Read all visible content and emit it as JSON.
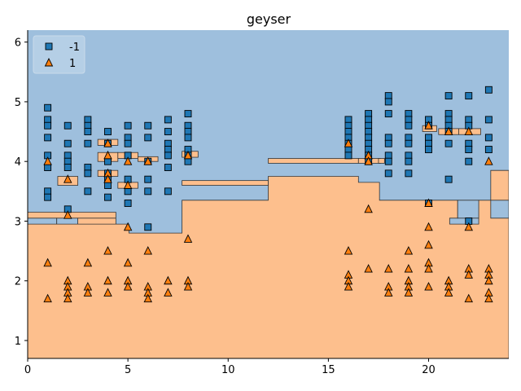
{
  "chart_data": {
    "type": "scatter",
    "title": "geyser",
    "xlabel": "",
    "ylabel": "",
    "xlim": [
      0,
      24
    ],
    "ylim": [
      0.7,
      6.2
    ],
    "xticks": [
      0,
      5,
      10,
      15,
      20
    ],
    "yticks": [
      1,
      2,
      3,
      4,
      5,
      6
    ],
    "grid": false,
    "legend_position": "top-left",
    "background": "decision-regions",
    "region_colors": {
      "-1": "#9ebfdd",
      "1": "#fdbf8d"
    },
    "series": [
      {
        "name": "-1",
        "marker": "square",
        "color": "#1f77b4",
        "points": [
          [
            1,
            4.9
          ],
          [
            1,
            4.7
          ],
          [
            1,
            4.6
          ],
          [
            1,
            4.4
          ],
          [
            1,
            4.1
          ],
          [
            1,
            3.9
          ],
          [
            1,
            3.5
          ],
          [
            1,
            3.4
          ],
          [
            2,
            4.6
          ],
          [
            2,
            4.3
          ],
          [
            2,
            4.1
          ],
          [
            2,
            4.0
          ],
          [
            2,
            3.9
          ],
          [
            2,
            3.2
          ],
          [
            3,
            4.7
          ],
          [
            3,
            4.6
          ],
          [
            3,
            4.5
          ],
          [
            3,
            4.3
          ],
          [
            3,
            3.9
          ],
          [
            3,
            3.8
          ],
          [
            3,
            3.5
          ],
          [
            4,
            4.5
          ],
          [
            4,
            4.3
          ],
          [
            4,
            4.0
          ],
          [
            4,
            3.8
          ],
          [
            4,
            3.7
          ],
          [
            4,
            3.6
          ],
          [
            4,
            3.4
          ],
          [
            5,
            4.6
          ],
          [
            5,
            4.4
          ],
          [
            5,
            4.3
          ],
          [
            5,
            4.1
          ],
          [
            5,
            3.7
          ],
          [
            5,
            3.5
          ],
          [
            5,
            3.3
          ],
          [
            6,
            4.6
          ],
          [
            6,
            4.4
          ],
          [
            6,
            4.0
          ],
          [
            6,
            3.7
          ],
          [
            6,
            3.5
          ],
          [
            6,
            2.9
          ],
          [
            7,
            4.7
          ],
          [
            7,
            4.5
          ],
          [
            7,
            4.3
          ],
          [
            7,
            4.2
          ],
          [
            7,
            4.1
          ],
          [
            7,
            3.9
          ],
          [
            7,
            3.5
          ],
          [
            8,
            4.8
          ],
          [
            8,
            4.6
          ],
          [
            8,
            4.5
          ],
          [
            8,
            4.4
          ],
          [
            8,
            4.2
          ],
          [
            8,
            4.1
          ],
          [
            8,
            4.0
          ],
          [
            16,
            4.7
          ],
          [
            16,
            4.6
          ],
          [
            16,
            4.5
          ],
          [
            16,
            4.4
          ],
          [
            16,
            4.3
          ],
          [
            16,
            4.2
          ],
          [
            16,
            4.1
          ],
          [
            17,
            4.8
          ],
          [
            17,
            4.7
          ],
          [
            17,
            4.6
          ],
          [
            17,
            4.5
          ],
          [
            17,
            4.4
          ],
          [
            17,
            4.3
          ],
          [
            17,
            4.2
          ],
          [
            17,
            4.1
          ],
          [
            17,
            4.0
          ],
          [
            18,
            5.1
          ],
          [
            18,
            5.0
          ],
          [
            18,
            4.8
          ],
          [
            18,
            4.4
          ],
          [
            18,
            4.3
          ],
          [
            18,
            4.1
          ],
          [
            18,
            4.0
          ],
          [
            18,
            3.8
          ],
          [
            19,
            4.8
          ],
          [
            19,
            4.7
          ],
          [
            19,
            4.6
          ],
          [
            19,
            4.4
          ],
          [
            19,
            4.3
          ],
          [
            19,
            4.1
          ],
          [
            19,
            4.0
          ],
          [
            19,
            3.8
          ],
          [
            20,
            4.7
          ],
          [
            20,
            4.6
          ],
          [
            20,
            4.4
          ],
          [
            20,
            4.3
          ],
          [
            20,
            4.2
          ],
          [
            20,
            3.3
          ],
          [
            21,
            5.1
          ],
          [
            21,
            4.8
          ],
          [
            21,
            4.7
          ],
          [
            21,
            4.6
          ],
          [
            21,
            4.5
          ],
          [
            21,
            4.3
          ],
          [
            21,
            3.7
          ],
          [
            22,
            5.1
          ],
          [
            22,
            4.7
          ],
          [
            22,
            4.6
          ],
          [
            22,
            4.3
          ],
          [
            22,
            4.2
          ],
          [
            22,
            4.0
          ],
          [
            22,
            3.0
          ],
          [
            23,
            5.2
          ],
          [
            23,
            4.7
          ],
          [
            23,
            4.4
          ],
          [
            23,
            4.2
          ]
        ]
      },
      {
        "name": "1",
        "marker": "triangle",
        "color": "#ff7f0e",
        "points": [
          [
            1,
            4.0
          ],
          [
            1,
            2.3
          ],
          [
            1,
            1.7
          ],
          [
            2,
            3.7
          ],
          [
            2,
            3.1
          ],
          [
            2,
            2.0
          ],
          [
            2,
            1.9
          ],
          [
            2,
            1.8
          ],
          [
            2,
            1.7
          ],
          [
            3,
            2.3
          ],
          [
            3,
            1.9
          ],
          [
            3,
            1.8
          ],
          [
            4,
            4.3
          ],
          [
            4,
            4.1
          ],
          [
            4,
            3.8
          ],
          [
            4,
            3.7
          ],
          [
            4,
            2.5
          ],
          [
            4,
            2.0
          ],
          [
            4,
            1.8
          ],
          [
            5,
            4.0
          ],
          [
            5,
            3.6
          ],
          [
            5,
            2.9
          ],
          [
            5,
            2.3
          ],
          [
            5,
            2.0
          ],
          [
            5,
            1.9
          ],
          [
            6,
            4.0
          ],
          [
            6,
            2.5
          ],
          [
            6,
            1.9
          ],
          [
            6,
            1.8
          ],
          [
            6,
            1.7
          ],
          [
            7,
            2.0
          ],
          [
            7,
            1.8
          ],
          [
            8,
            4.1
          ],
          [
            8,
            2.7
          ],
          [
            8,
            2.0
          ],
          [
            8,
            1.9
          ],
          [
            16,
            4.3
          ],
          [
            16,
            2.5
          ],
          [
            16,
            2.1
          ],
          [
            16,
            2.0
          ],
          [
            16,
            1.9
          ],
          [
            17,
            4.1
          ],
          [
            17,
            4.0
          ],
          [
            17,
            3.2
          ],
          [
            17,
            2.2
          ],
          [
            18,
            2.2
          ],
          [
            18,
            1.9
          ],
          [
            18,
            1.8
          ],
          [
            19,
            2.5
          ],
          [
            19,
            2.2
          ],
          [
            19,
            2.0
          ],
          [
            19,
            1.9
          ],
          [
            19,
            1.8
          ],
          [
            20,
            4.6
          ],
          [
            20,
            3.3
          ],
          [
            20,
            2.9
          ],
          [
            20,
            2.6
          ],
          [
            20,
            2.3
          ],
          [
            20,
            2.2
          ],
          [
            20,
            1.9
          ],
          [
            21,
            4.5
          ],
          [
            21,
            2.0
          ],
          [
            21,
            1.9
          ],
          [
            21,
            1.8
          ],
          [
            22,
            4.5
          ],
          [
            22,
            2.9
          ],
          [
            22,
            2.2
          ],
          [
            22,
            2.1
          ],
          [
            22,
            1.7
          ],
          [
            23,
            4.0
          ],
          [
            23,
            2.2
          ],
          [
            23,
            2.1
          ],
          [
            23,
            2.0
          ],
          [
            23,
            1.8
          ],
          [
            23,
            1.7
          ]
        ]
      }
    ]
  }
}
